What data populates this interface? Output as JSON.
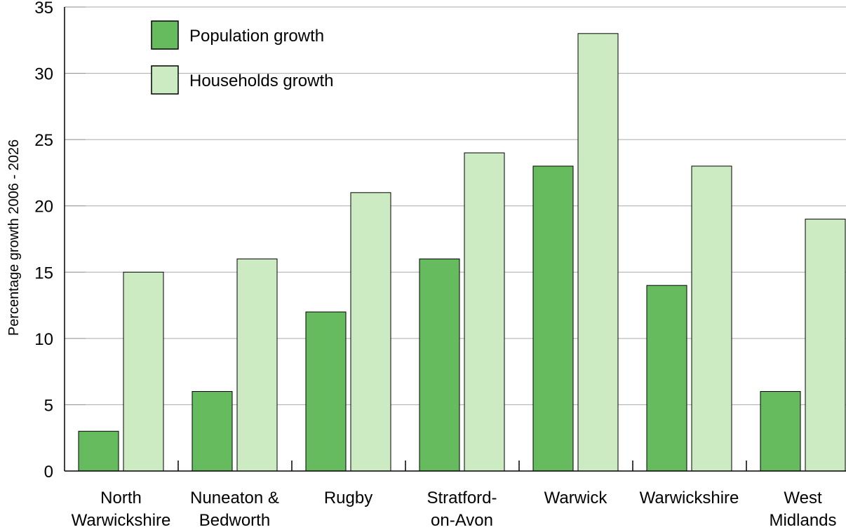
{
  "chart_data": {
    "type": "bar",
    "categories": [
      [
        "North",
        "Warwickshire"
      ],
      [
        "Nuneaton &",
        "Bedworth"
      ],
      [
        "Rugby"
      ],
      [
        "Stratford-",
        "on-Avon"
      ],
      [
        "Warwick"
      ],
      [
        "Warwickshire"
      ],
      [
        "West",
        "Midlands"
      ]
    ],
    "series": [
      {
        "name": "Population growth",
        "color": "#66bb5f",
        "values": [
          3,
          6,
          12,
          16,
          23,
          14,
          6
        ]
      },
      {
        "name": "Households growth",
        "color": "#cdebc3",
        "values": [
          15,
          16,
          21,
          24,
          33,
          23,
          19
        ]
      }
    ],
    "xlabel": "",
    "ylabel": "Percentage growth  2006 - 2026",
    "ylim": [
      0,
      35
    ],
    "yticks": [
      "0",
      "5",
      "10",
      "15",
      "20",
      "25",
      "30",
      "35"
    ],
    "grid": true,
    "legend_position": "top-left"
  }
}
